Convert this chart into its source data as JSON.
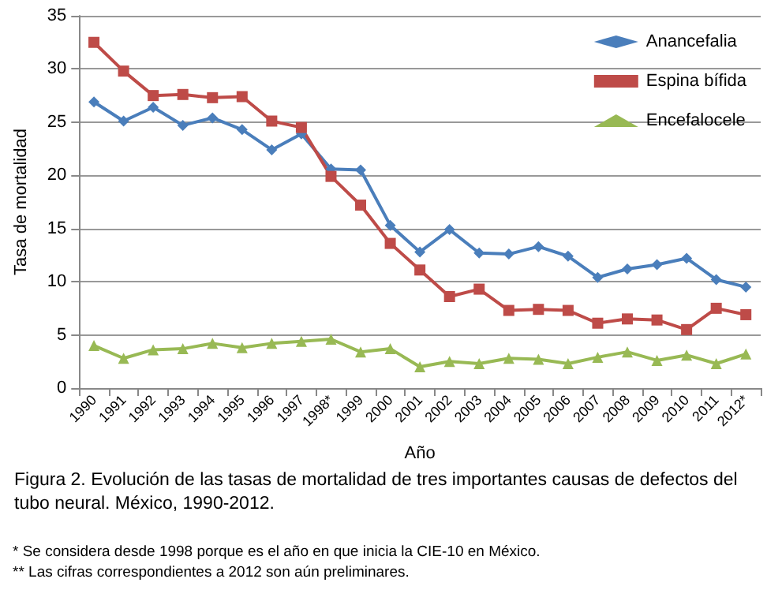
{
  "chart_data": {
    "type": "line",
    "title": "Figura 2. Evolución de las tasas de mortalidad de tres importantes causas de defectos del tubo neural. México, 1990-2012.",
    "xlabel": "Año",
    "ylabel": "Tasa de mortalidad",
    "categories": [
      "1990",
      "1991",
      "1992",
      "1993",
      "1994",
      "1995",
      "1996",
      "1997",
      "1998*",
      "1999",
      "2000",
      "2001",
      "2002",
      "2003",
      "2004",
      "2005",
      "2006",
      "2007",
      "2008",
      "2009",
      "2010",
      "2011",
      "2012*"
    ],
    "series": [
      {
        "name": "Anancefalia",
        "color": "#4a7ebb",
        "marker": "diamond",
        "values": [
          26.9,
          25.1,
          26.4,
          24.7,
          25.4,
          24.3,
          22.4,
          23.9,
          20.6,
          20.5,
          15.3,
          12.8,
          14.9,
          12.7,
          12.6,
          13.3,
          12.4,
          10.4,
          11.2,
          11.6,
          12.2,
          10.2,
          9.5
        ]
      },
      {
        "name": "Espina bífida",
        "color": "#be4b48",
        "marker": "square",
        "values": [
          32.5,
          29.8,
          27.5,
          27.6,
          27.3,
          27.4,
          25.1,
          24.5,
          19.9,
          17.2,
          13.6,
          11.1,
          8.6,
          9.3,
          7.3,
          7.4,
          7.3,
          6.1,
          6.5,
          6.4,
          5.5,
          7.5,
          6.9
        ]
      },
      {
        "name": "Encefalocele",
        "color": "#98b954",
        "marker": "triangle",
        "values": [
          4.0,
          2.8,
          3.6,
          3.7,
          4.2,
          3.8,
          4.2,
          4.4,
          4.6,
          3.4,
          3.7,
          2.0,
          2.5,
          2.3,
          2.8,
          2.7,
          2.3,
          2.9,
          3.4,
          2.6,
          3.1,
          2.3,
          3.2
        ]
      }
    ],
    "ylim": [
      0,
      35
    ],
    "yticks": [
      0,
      5,
      10,
      15,
      20,
      25,
      30,
      35
    ],
    "grid": "y",
    "legend": "top right",
    "line_style": "solid",
    "annotations": [
      "* Se considera desde 1998 porque es el año en que inicia la CIE-10 en México.",
      "** Las cifras correspondientes a 2012 son aún preliminares."
    ]
  }
}
